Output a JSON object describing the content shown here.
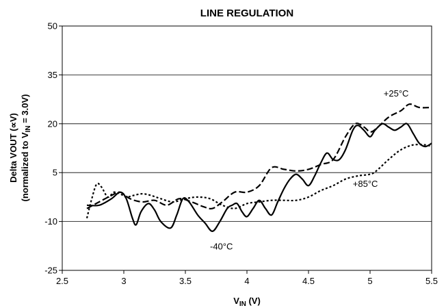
{
  "chart_data": {
    "type": "line",
    "title": "LINE REGULATION",
    "xlabel_main": "V",
    "xlabel_sub": "IN",
    "xlabel_unit": " (V)",
    "ylabel_line1": "Delta VOUT (∝V)",
    "ylabel_line2_pre": "(normalized to V",
    "ylabel_line2_sub": "IN",
    "ylabel_line2_post": " = 3.0V)",
    "xlim": [
      2.5,
      5.5
    ],
    "ylim": [
      -25,
      50
    ],
    "xticks": [
      "2.5",
      "3",
      "3.5",
      "4",
      "4.5",
      "5",
      "5.5"
    ],
    "yticks": [
      "-25",
      "-10",
      "5",
      "20",
      "35",
      "50"
    ],
    "grid": "horizontal",
    "series": [
      {
        "name": "-40°C",
        "style": "solid",
        "points": [
          [
            2.7,
            -5
          ],
          [
            2.8,
            -5
          ],
          [
            2.9,
            -3
          ],
          [
            2.97,
            -1
          ],
          [
            3.02,
            -3
          ],
          [
            3.07,
            -9
          ],
          [
            3.1,
            -11
          ],
          [
            3.14,
            -7
          ],
          [
            3.2,
            -4.5
          ],
          [
            3.25,
            -6.5
          ],
          [
            3.3,
            -10
          ],
          [
            3.38,
            -12
          ],
          [
            3.43,
            -8
          ],
          [
            3.48,
            -3
          ],
          [
            3.53,
            -4
          ],
          [
            3.6,
            -8
          ],
          [
            3.66,
            -10.5
          ],
          [
            3.72,
            -13
          ],
          [
            3.78,
            -10
          ],
          [
            3.84,
            -6
          ],
          [
            3.88,
            -5
          ],
          [
            3.92,
            -4.5
          ],
          [
            3.96,
            -7
          ],
          [
            4.0,
            -8.5
          ],
          [
            4.05,
            -6
          ],
          [
            4.1,
            -3.5
          ],
          [
            4.15,
            -6
          ],
          [
            4.2,
            -8
          ],
          [
            4.25,
            -4
          ],
          [
            4.3,
            0
          ],
          [
            4.35,
            3
          ],
          [
            4.4,
            4.5
          ],
          [
            4.45,
            3
          ],
          [
            4.5,
            1
          ],
          [
            4.55,
            4
          ],
          [
            4.6,
            8
          ],
          [
            4.65,
            11
          ],
          [
            4.7,
            9
          ],
          [
            4.75,
            9
          ],
          [
            4.8,
            12
          ],
          [
            4.86,
            18
          ],
          [
            4.9,
            19.5
          ],
          [
            4.95,
            18
          ],
          [
            5.0,
            16
          ],
          [
            5.04,
            18
          ],
          [
            5.1,
            20
          ],
          [
            5.15,
            19
          ],
          [
            5.2,
            18
          ],
          [
            5.25,
            19
          ],
          [
            5.3,
            20
          ],
          [
            5.35,
            17
          ],
          [
            5.4,
            14
          ],
          [
            5.45,
            13
          ],
          [
            5.5,
            14
          ]
        ]
      },
      {
        "name": "+25°C",
        "style": "dashed",
        "points": [
          [
            2.7,
            -6
          ],
          [
            2.8,
            -4
          ],
          [
            2.9,
            -2
          ],
          [
            2.97,
            -1
          ],
          [
            3.05,
            -3
          ],
          [
            3.15,
            -4
          ],
          [
            3.25,
            -3.5
          ],
          [
            3.35,
            -5
          ],
          [
            3.45,
            -3
          ],
          [
            3.55,
            -4
          ],
          [
            3.65,
            -5.5
          ],
          [
            3.72,
            -6
          ],
          [
            3.8,
            -4
          ],
          [
            3.9,
            -1
          ],
          [
            4.0,
            -1
          ],
          [
            4.1,
            1
          ],
          [
            4.2,
            6.5
          ],
          [
            4.3,
            6
          ],
          [
            4.4,
            5.5
          ],
          [
            4.5,
            6
          ],
          [
            4.6,
            7.5
          ],
          [
            4.7,
            9
          ],
          [
            4.8,
            16
          ],
          [
            4.88,
            20
          ],
          [
            4.95,
            19
          ],
          [
            5.0,
            17.5
          ],
          [
            5.05,
            18.5
          ],
          [
            5.15,
            22
          ],
          [
            5.25,
            24
          ],
          [
            5.32,
            26
          ],
          [
            5.4,
            25
          ],
          [
            5.5,
            25
          ]
        ]
      },
      {
        "name": "+85°C",
        "style": "dotted",
        "points": [
          [
            2.7,
            -9
          ],
          [
            2.74,
            -3
          ],
          [
            2.78,
            1.5
          ],
          [
            2.82,
            0.5
          ],
          [
            2.87,
            -2.5
          ],
          [
            2.92,
            -1
          ],
          [
            2.97,
            -1.5
          ],
          [
            3.02,
            -2.5
          ],
          [
            3.08,
            -2
          ],
          [
            3.15,
            -1.5
          ],
          [
            3.22,
            -2
          ],
          [
            3.3,
            -3
          ],
          [
            3.4,
            -4
          ],
          [
            3.5,
            -3
          ],
          [
            3.6,
            -2.5
          ],
          [
            3.7,
            -3
          ],
          [
            3.8,
            -5
          ],
          [
            3.9,
            -6
          ],
          [
            4.0,
            -4.5
          ],
          [
            4.1,
            -4
          ],
          [
            4.2,
            -3.5
          ],
          [
            4.3,
            -3.5
          ],
          [
            4.4,
            -3.5
          ],
          [
            4.5,
            -2.5
          ],
          [
            4.6,
            -0.5
          ],
          [
            4.7,
            1
          ],
          [
            4.8,
            3
          ],
          [
            4.9,
            4
          ],
          [
            5.0,
            4.5
          ],
          [
            5.05,
            5.5
          ],
          [
            5.15,
            9
          ],
          [
            5.25,
            12
          ],
          [
            5.35,
            13.5
          ],
          [
            5.45,
            13.5
          ],
          [
            5.5,
            13
          ]
        ]
      }
    ],
    "annotations": [
      {
        "text": "+25°C",
        "x": 5.11,
        "y": 28.4
      },
      {
        "text": "+85°C",
        "x": 4.86,
        "y": 0.6
      },
      {
        "text": "-40°C",
        "x": 3.7,
        "y": -18.6
      }
    ]
  }
}
